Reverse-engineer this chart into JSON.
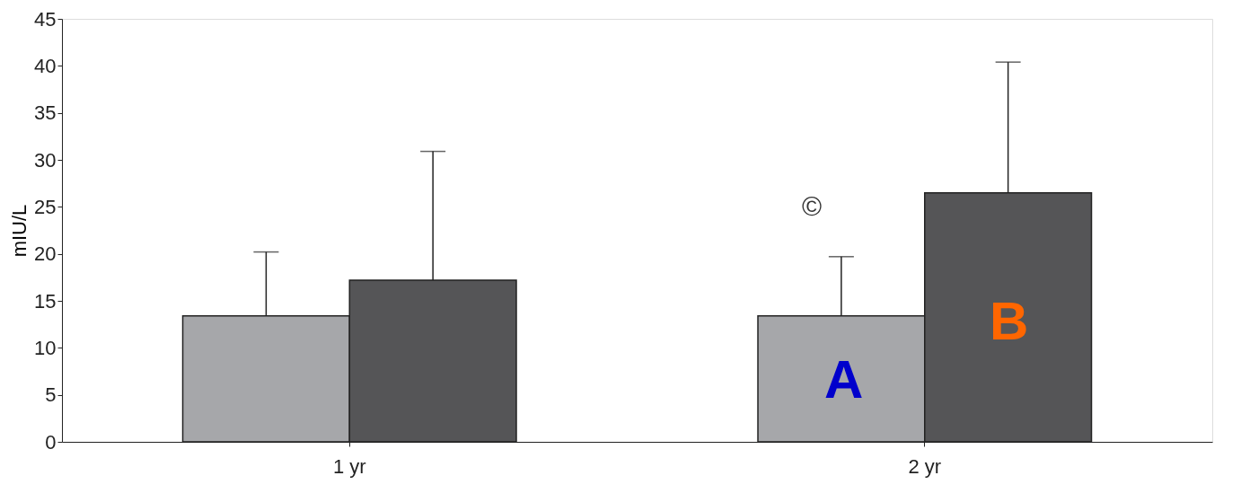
{
  "chart_data": {
    "type": "bar",
    "ylabel": "mIU/L",
    "categories": [
      "1 yr",
      "2 yr"
    ],
    "series": [
      {
        "color": "#a6a7aa",
        "values": [
          13.4,
          13.4
        ],
        "errors": [
          [
            13.4,
            20.2
          ],
          [
            13.4,
            19.7
          ]
        ]
      },
      {
        "color": "#555557",
        "values": [
          17.2,
          26.5
        ],
        "errors": [
          [
            17.2,
            30.9
          ],
          [
            26.5,
            40.4
          ]
        ]
      }
    ],
    "ylim": [
      0,
      45
    ],
    "yticks": [
      0,
      5,
      10,
      15,
      20,
      25,
      30,
      35,
      40,
      45
    ],
    "grid": false,
    "annotations": [
      "©",
      {
        "text": "A",
        "x": "2 yr",
        "y": 6.4
      },
      {
        "text": "B",
        "x": "2 yr",
        "y": 12.6
      }
    ]
  }
}
